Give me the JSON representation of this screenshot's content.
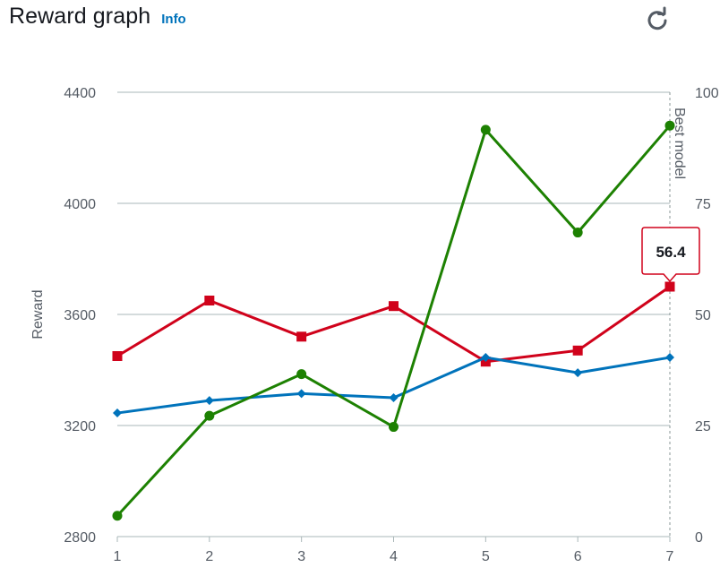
{
  "header": {
    "title": "Reward graph",
    "info_label": "Info",
    "refresh_icon": "refresh-icon"
  },
  "colors": {
    "blue": "#0073bb",
    "red": "#d0021b",
    "green": "#1d8102",
    "grid": "#aab7b8",
    "axis_text": "#545b64"
  },
  "chart_data": {
    "type": "line",
    "x": [
      1,
      2,
      3,
      4,
      5,
      6,
      7
    ],
    "xlim": [
      1,
      7
    ],
    "ylabel": "Reward",
    "ylim": [
      2800,
      4400
    ],
    "y_ticks": [
      2800,
      3200,
      3600,
      4000,
      4400
    ],
    "y2lim": [
      0,
      100
    ],
    "y2_ticks": [
      0,
      25,
      50,
      75,
      100
    ],
    "grid": true,
    "series": [
      {
        "axis": "left",
        "color": "#d0021b",
        "marker": "square",
        "values": [
          3450,
          3650,
          3520,
          3630,
          3430,
          3470,
          3700
        ]
      },
      {
        "axis": "left",
        "color": "#0073bb",
        "marker": "diamond",
        "values": [
          3245,
          3290,
          3315,
          3300,
          3445,
          3390,
          3445
        ]
      },
      {
        "axis": "left",
        "color": "#1d8102",
        "marker": "circle",
        "values": [
          2875,
          3235,
          3385,
          3195,
          4265,
          3895,
          4280
        ]
      }
    ],
    "annotations": [
      {
        "type": "vertical-line",
        "x": 7,
        "label": "Best model"
      }
    ],
    "tooltip": {
      "x": 7,
      "series": 0,
      "text": "56.4"
    }
  }
}
